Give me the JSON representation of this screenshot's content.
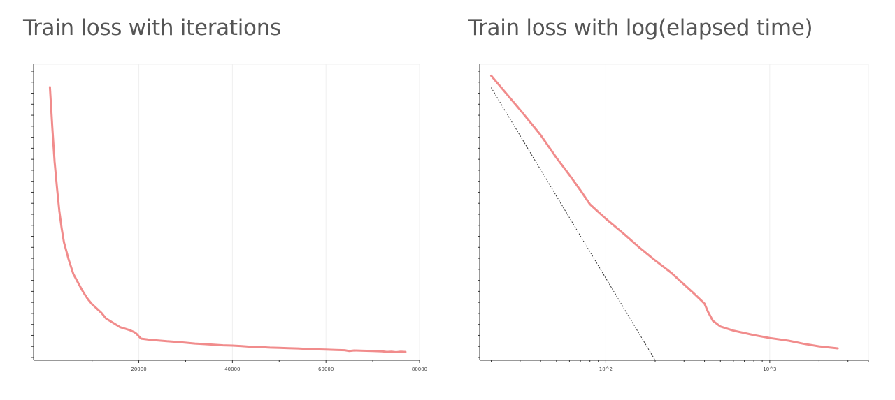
{
  "chart_data": [
    {
      "type": "line",
      "title": "Train loss with iterations",
      "xlabel": "",
      "ylabel": "",
      "xlim": [
        -2500,
        80000
      ],
      "ylim": [
        0.05,
        1.08
      ],
      "x_ticks": [
        20000,
        40000,
        60000,
        80000
      ],
      "x_tick_labels": [
        "20000",
        "40000",
        "60000",
        "80000"
      ],
      "grid": true,
      "legend": "none",
      "colors": {
        "line": "#f08080",
        "grid": "#efefef",
        "axis": "#333333"
      },
      "series": [
        {
          "x": [
            1000,
            1500,
            2000,
            2500,
            3000,
            3500,
            4000,
            5000,
            6000,
            7000,
            8000,
            9000,
            10000,
            11000,
            12000,
            13000,
            14000,
            15000,
            16000,
            17000,
            18000,
            19000,
            19500,
            20000,
            20500,
            21000,
            22000,
            24000,
            26000,
            28000,
            30000,
            32000,
            34000,
            36000,
            38000,
            40000,
            42000,
            44000,
            46000,
            48000,
            50000,
            52000,
            54000,
            56000,
            58000,
            60000,
            62000,
            64000,
            65000,
            66000,
            68000,
            70000,
            72000,
            73000,
            74000,
            75000,
            76000,
            77000
          ],
          "y": [
            1.0,
            0.86,
            0.74,
            0.65,
            0.57,
            0.51,
            0.46,
            0.4,
            0.35,
            0.32,
            0.29,
            0.265,
            0.245,
            0.23,
            0.215,
            0.195,
            0.185,
            0.175,
            0.165,
            0.16,
            0.155,
            0.148,
            0.142,
            0.133,
            0.125,
            0.124,
            0.122,
            0.119,
            0.116,
            0.114,
            0.111,
            0.108,
            0.106,
            0.104,
            0.102,
            0.101,
            0.099,
            0.097,
            0.096,
            0.094,
            0.093,
            0.092,
            0.091,
            0.089,
            0.088,
            0.087,
            0.086,
            0.085,
            0.082,
            0.084,
            0.083,
            0.082,
            0.081,
            0.079,
            0.08,
            0.078,
            0.08,
            0.079
          ]
        }
      ]
    },
    {
      "type": "line",
      "title": "Train loss with log(elapsed time)",
      "xlabel": "",
      "ylabel": "",
      "xscale": "log",
      "xlim": [
        17,
        4000
      ],
      "ylim": [
        0,
        1
      ],
      "x_ticks": [
        100,
        1000
      ],
      "x_tick_labels": [
        "10^2",
        "10^3"
      ],
      "grid": true,
      "legend": "none",
      "colors": {
        "line": "#f08080",
        "reference": "#333333",
        "grid": "#efefef",
        "axis": "#333333"
      },
      "series": [
        {
          "x": [
            20,
            30,
            40,
            50,
            60,
            70,
            80,
            100,
            130,
            160,
            200,
            250,
            300,
            350,
            400,
            420,
            450,
            500,
            600,
            700,
            800,
            1000,
            1300,
            1600,
            2000,
            2600
          ],
          "y": [
            0.961,
            0.846,
            0.761,
            0.684,
            0.626,
            0.574,
            0.527,
            0.478,
            0.425,
            0.381,
            0.337,
            0.296,
            0.256,
            0.222,
            0.191,
            0.164,
            0.133,
            0.114,
            0.1,
            0.092,
            0.085,
            0.075,
            0.066,
            0.056,
            0.047,
            0.04
          ]
        },
        {
          "x": [
            20,
            200
          ],
          "y": [
            0.921,
            0.0
          ]
        }
      ]
    }
  ]
}
